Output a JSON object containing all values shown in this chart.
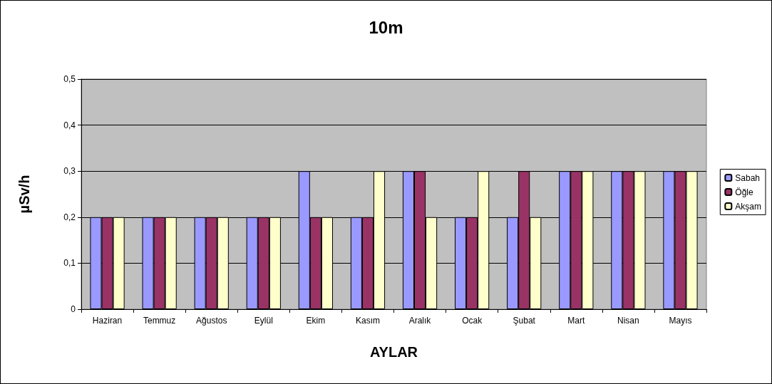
{
  "chart_data": {
    "type": "bar",
    "title": "10m",
    "xlabel": "AYLAR",
    "ylabel": "µSv/h",
    "categories": [
      "Haziran",
      "Temmuz",
      "Ağustos",
      "Eylül",
      "Ekim",
      "Kasım",
      "Aralık",
      "Ocak",
      "Şubat",
      "Mart",
      "Nisan",
      "Mayıs"
    ],
    "series": [
      {
        "name": "Sabah",
        "color": "#9999ff",
        "values": [
          0.2,
          0.2,
          0.2,
          0.2,
          0.3,
          0.2,
          0.3,
          0.2,
          0.2,
          0.3,
          0.3,
          0.3
        ]
      },
      {
        "name": "Öğle",
        "color": "#993366",
        "values": [
          0.2,
          0.2,
          0.2,
          0.2,
          0.2,
          0.2,
          0.3,
          0.2,
          0.3,
          0.3,
          0.3,
          0.3
        ]
      },
      {
        "name": "Akşam",
        "color": "#ffffcc",
        "values": [
          0.2,
          0.2,
          0.2,
          0.2,
          0.2,
          0.3,
          0.2,
          0.3,
          0.2,
          0.3,
          0.3,
          0.3
        ]
      }
    ],
    "ylim": [
      0,
      0.5
    ],
    "yticks": [
      0,
      {
        "value": 0.1,
        "label": "0,1"
      },
      {
        "value": 0.2,
        "label": "0,2"
      },
      {
        "value": 0.3,
        "label": "0,3"
      },
      {
        "value": 0.4,
        "label": "0,4"
      },
      {
        "value": 0.5,
        "label": "0,5"
      }
    ],
    "grid": "y",
    "legend": "right"
  }
}
